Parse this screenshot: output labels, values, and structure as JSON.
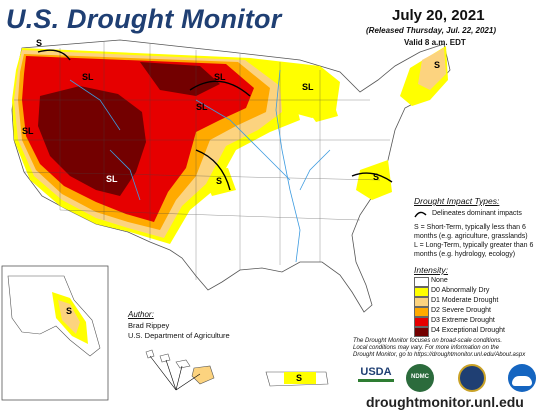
{
  "header": {
    "title": "U.S. Drought Monitor",
    "date": "July 20, 2021",
    "released": "(Released Thursday, Jul. 22, 2021)",
    "valid": "Valid 8 a.m. EDT"
  },
  "map_labels": {
    "s_pnw": "S",
    "sl_nw": "SL",
    "sl_nd": "SL",
    "sl_mn": "SL",
    "sl_ne": "SL",
    "sl_nv": "SL",
    "sl_sw": "SL",
    "s_ks": "S",
    "s_va": "S",
    "s_me": "S",
    "s_ak": "S",
    "s_pr": "S"
  },
  "impact": {
    "heading": "Drought Impact Types:",
    "dominant": "Delineates dominant impacts",
    "short": "S = Short-Term, typically less than 6 months (e.g. agriculture, grasslands)",
    "long": "L = Long-Term, typically greater than 6 months (e.g. hydrology, ecology)"
  },
  "intensity": {
    "heading": "Intensity:",
    "items": [
      {
        "label": "None",
        "color": "#ffffff"
      },
      {
        "label": "D0 Abnormally Dry",
        "color": "#ffff00"
      },
      {
        "label": "D1 Moderate Drought",
        "color": "#fcd37f"
      },
      {
        "label": "D2 Severe Drought",
        "color": "#ffaa00"
      },
      {
        "label": "D3 Extreme Drought",
        "color": "#e60000"
      },
      {
        "label": "D4 Exceptional Drought",
        "color": "#730000"
      }
    ]
  },
  "author": {
    "heading": "Author:",
    "name": "Brad Rippey",
    "org": "U.S. Department of Agriculture"
  },
  "disclaimer": {
    "line1": "The Drought Monitor focuses on broad-scale conditions.",
    "line2": "Local conditions may vary. For more information on the",
    "line3": "Drought Monitor, go to https://droughtmonitor.unl.edu/About.aspx"
  },
  "logos": {
    "usda": "USDA",
    "ndmc": "NDMC"
  },
  "footer_url": "droughtmonitor.unl.edu",
  "colors": {
    "none": "#ffffff",
    "d0": "#ffff00",
    "d1": "#fcd37f",
    "d2": "#ffaa00",
    "d3": "#e60000",
    "d4": "#730000",
    "title": "#1f3f73",
    "rivers": "#3d9be0"
  }
}
